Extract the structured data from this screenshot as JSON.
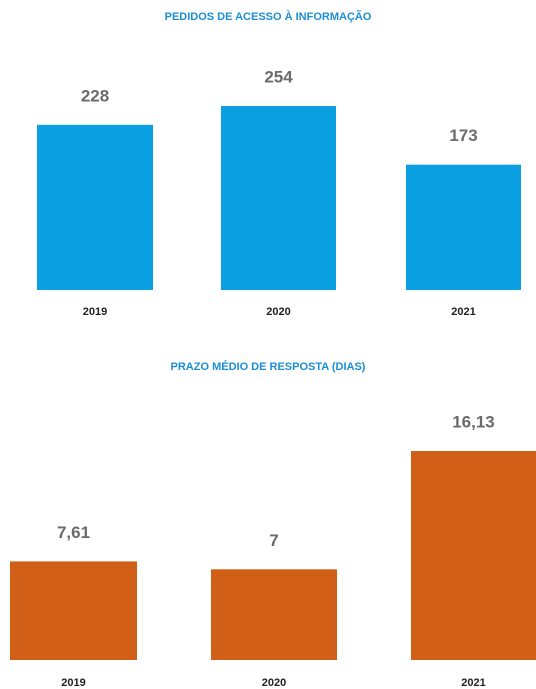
{
  "chart_data": [
    {
      "type": "bar",
      "title": "PEDIDOS DE ACESSO À INFORMAÇÃO",
      "categories": [
        "2019",
        "2020",
        "2021"
      ],
      "values": [
        228,
        254,
        173
      ],
      "value_labels": [
        "228",
        "254",
        "173"
      ],
      "color": "#0a9fe0"
    },
    {
      "type": "bar",
      "title": "PRAZO MÉDIO DE RESPOSTA (DIAS)",
      "categories": [
        "2019",
        "2020",
        "2021"
      ],
      "values": [
        7.61,
        7,
        16.13
      ],
      "value_labels": [
        "7,61",
        "7",
        "16,13"
      ],
      "color": "#d15f17"
    }
  ]
}
